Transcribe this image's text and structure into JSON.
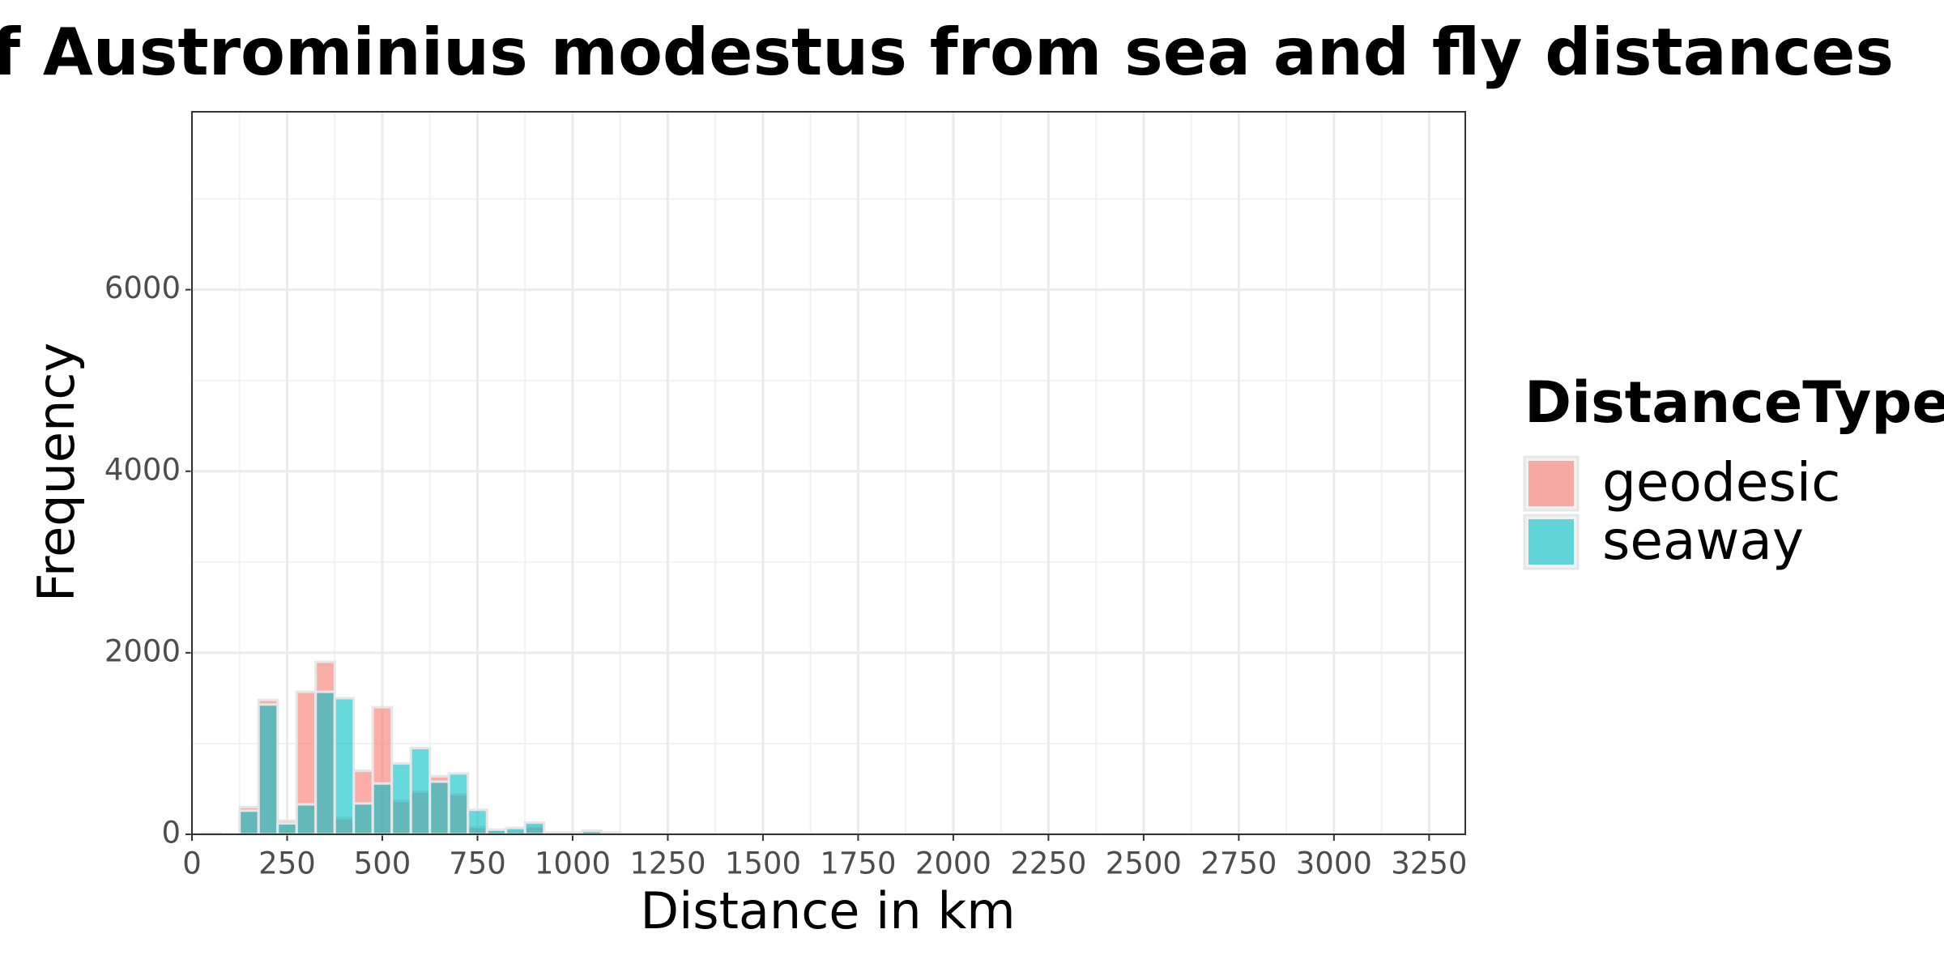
{
  "chart_data": {
    "type": "histogram",
    "title": "ution of Austrominius modestus from sea and fly distances",
    "xlabel": "Distance in km",
    "ylabel": "Frequency",
    "legend_title": "DistanceType",
    "legend": "right",
    "bins": [
      25,
      75,
      125,
      175,
      225,
      275,
      325,
      375,
      425,
      475,
      525,
      575,
      625,
      675,
      725,
      775,
      825,
      875,
      925,
      975,
      1025,
      1075,
      1125
    ],
    "series": [
      {
        "name": "geodesic",
        "color": "#F8766D",
        "values": [
          10,
          0,
          300,
          1480,
          150,
          1570,
          1900,
          180,
          700,
          1400,
          370,
          470,
          640,
          440,
          80,
          50,
          40,
          90,
          20,
          20,
          30,
          20
        ]
      },
      {
        "name": "seaway",
        "color": "#00BFC4",
        "values": [
          10,
          0,
          260,
          1430,
          120,
          330,
          1570,
          1500,
          340,
          560,
          780,
          950,
          580,
          670,
          270,
          50,
          70,
          130,
          20,
          10,
          40,
          20
        ]
      }
    ],
    "xlim": [
      0,
      3345
    ],
    "xticks": [
      0,
      250,
      500,
      750,
      1000,
      1250,
      1500,
      1750,
      2000,
      2250,
      2500,
      2750,
      3000,
      3250
    ],
    "ylim": [
      0,
      7960
    ],
    "yticks": [
      0,
      2000,
      4000,
      6000
    ],
    "grid": true
  }
}
